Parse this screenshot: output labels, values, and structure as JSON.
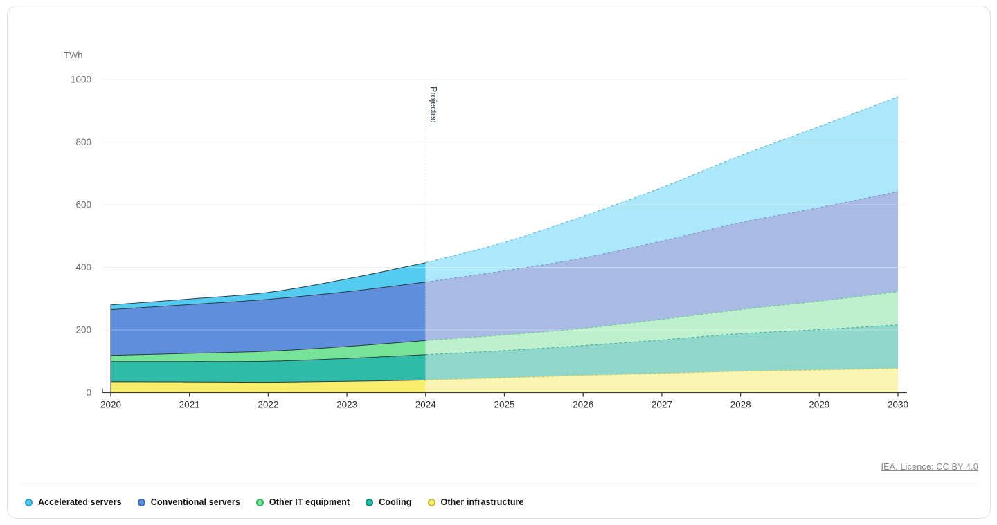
{
  "chart": {
    "unit_label": "TWh",
    "projected_label": "Projected"
  },
  "footer": {
    "source_link": "IEA. Licence: CC BY 4.0"
  },
  "chart_data": {
    "type": "area",
    "stacked": true,
    "title": "",
    "xlabel": "",
    "ylabel": "TWh",
    "x": [
      2020,
      2021,
      2022,
      2023,
      2024,
      2025,
      2026,
      2027,
      2028,
      2029,
      2030
    ],
    "projection_start": 2024,
    "ylim": [
      0,
      1000
    ],
    "y_ticks": [
      0,
      200,
      400,
      600,
      800,
      1000
    ],
    "grid": true,
    "legend_position": "bottom",
    "axis_colors": {
      "axis_line": "#3d3d3d",
      "x_tick_label": "#2f2f2f",
      "y_tick_label": "#707070",
      "gridline": "#e8e8e8",
      "historical_edge": "#2e3b40",
      "projection_divider": "#cccccc"
    },
    "series": [
      {
        "name": "Accelerated servers",
        "values": [
          15,
          18,
          22,
          41,
          62,
          91,
          133,
          171,
          214,
          259,
          303
        ],
        "color_hist": "#54CBF1",
        "color_proj": "#ADE8FA",
        "color_dash": "#5FBCDF",
        "dot_border": "#2D9FC9"
      },
      {
        "name": "Conventional servers",
        "values": [
          146,
          156,
          166,
          175,
          187,
          205,
          225,
          250,
          278,
          299,
          320
        ],
        "color_hist": "#5F8EDC",
        "color_proj": "#A9BBE5",
        "color_dash": "#7D98D2",
        "dot_border": "#3A66B5"
      },
      {
        "name": "Other IT equipment",
        "values": [
          20,
          26,
          32,
          38,
          45,
          50,
          55,
          66,
          77,
          91,
          106
        ],
        "color_hist": "#77E399",
        "color_proj": "#BEF0CD",
        "color_dash": "#6FCE93",
        "dot_border": "#35B463"
      },
      {
        "name": "Cooling",
        "values": [
          64,
          65,
          67,
          73,
          81,
          87,
          95,
          107,
          120,
          129,
          139
        ],
        "color_hist": "#2EBBA7",
        "color_proj": "#8FD7CB",
        "color_dash": "#4DB3A4",
        "dot_border": "#0F8E7C"
      },
      {
        "name": "Other infrastructure",
        "values": [
          35,
          34,
          33,
          36,
          40,
          47,
          55,
          61,
          68,
          72,
          77
        ],
        "color_hist": "#F9EE6B",
        "color_proj": "#FAF6B2",
        "color_dash": "#D5CB5F",
        "dot_border": "#C5B63E"
      }
    ]
  }
}
